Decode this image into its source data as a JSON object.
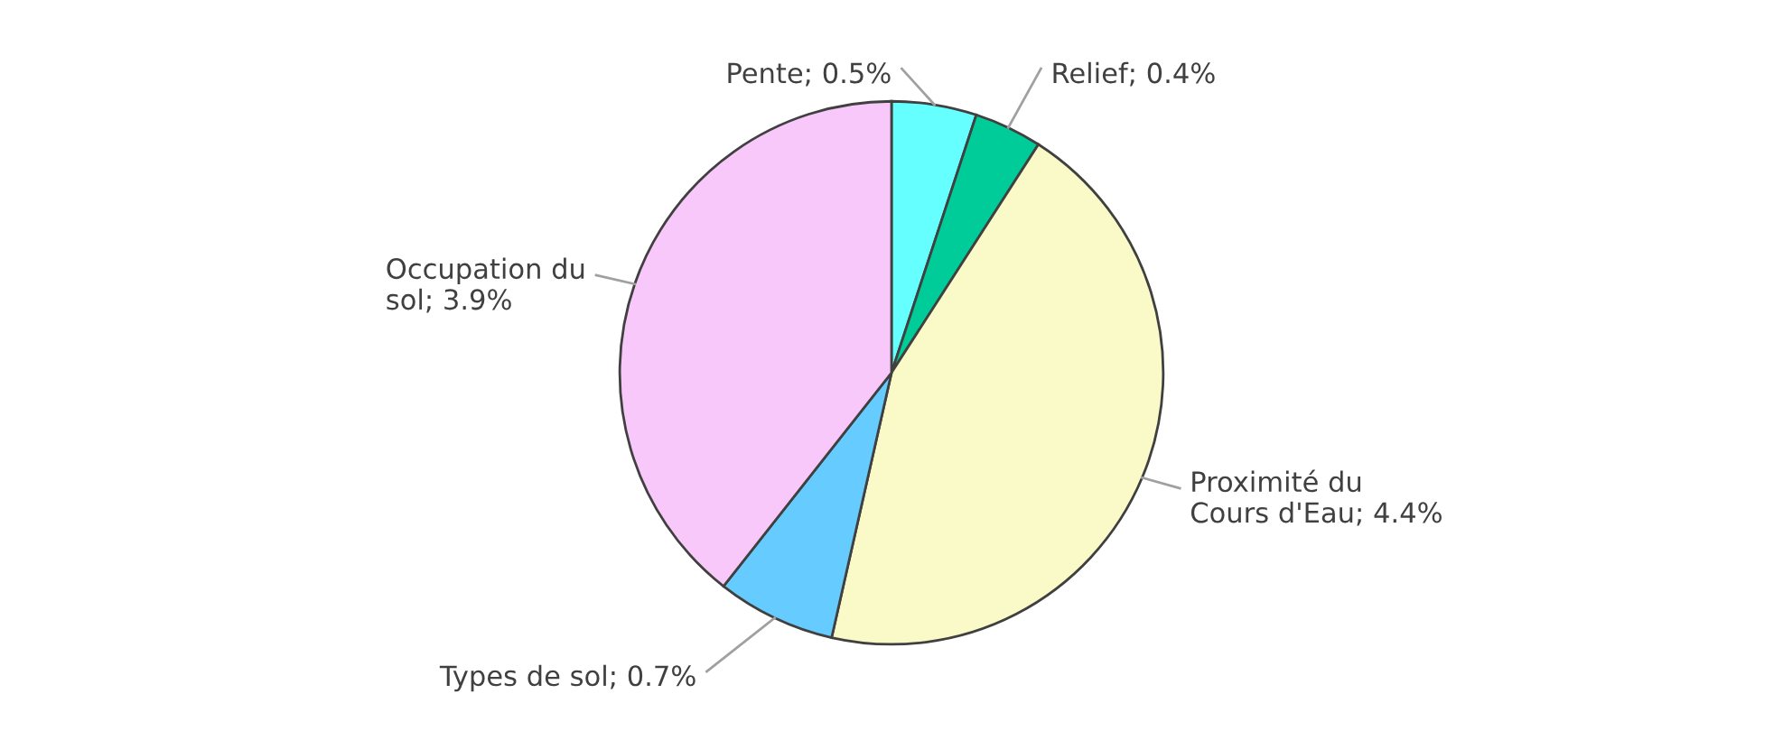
{
  "chart_data": {
    "type": "pie",
    "categories": [
      "Pente",
      "Relief",
      "Proximité du Cours d'Eau",
      "Types de sol",
      "Occupation du sol"
    ],
    "values": [
      0.5,
      0.4,
      4.4,
      0.7,
      3.9
    ],
    "colors": [
      "#66ffff",
      "#00cc99",
      "#fafac8",
      "#66ccff",
      "#f9c8fa"
    ],
    "value_labels": [
      "; 0.5%",
      "; 0.4%",
      "; 4.4%",
      "; 0.7%",
      "; 3.9%"
    ]
  }
}
